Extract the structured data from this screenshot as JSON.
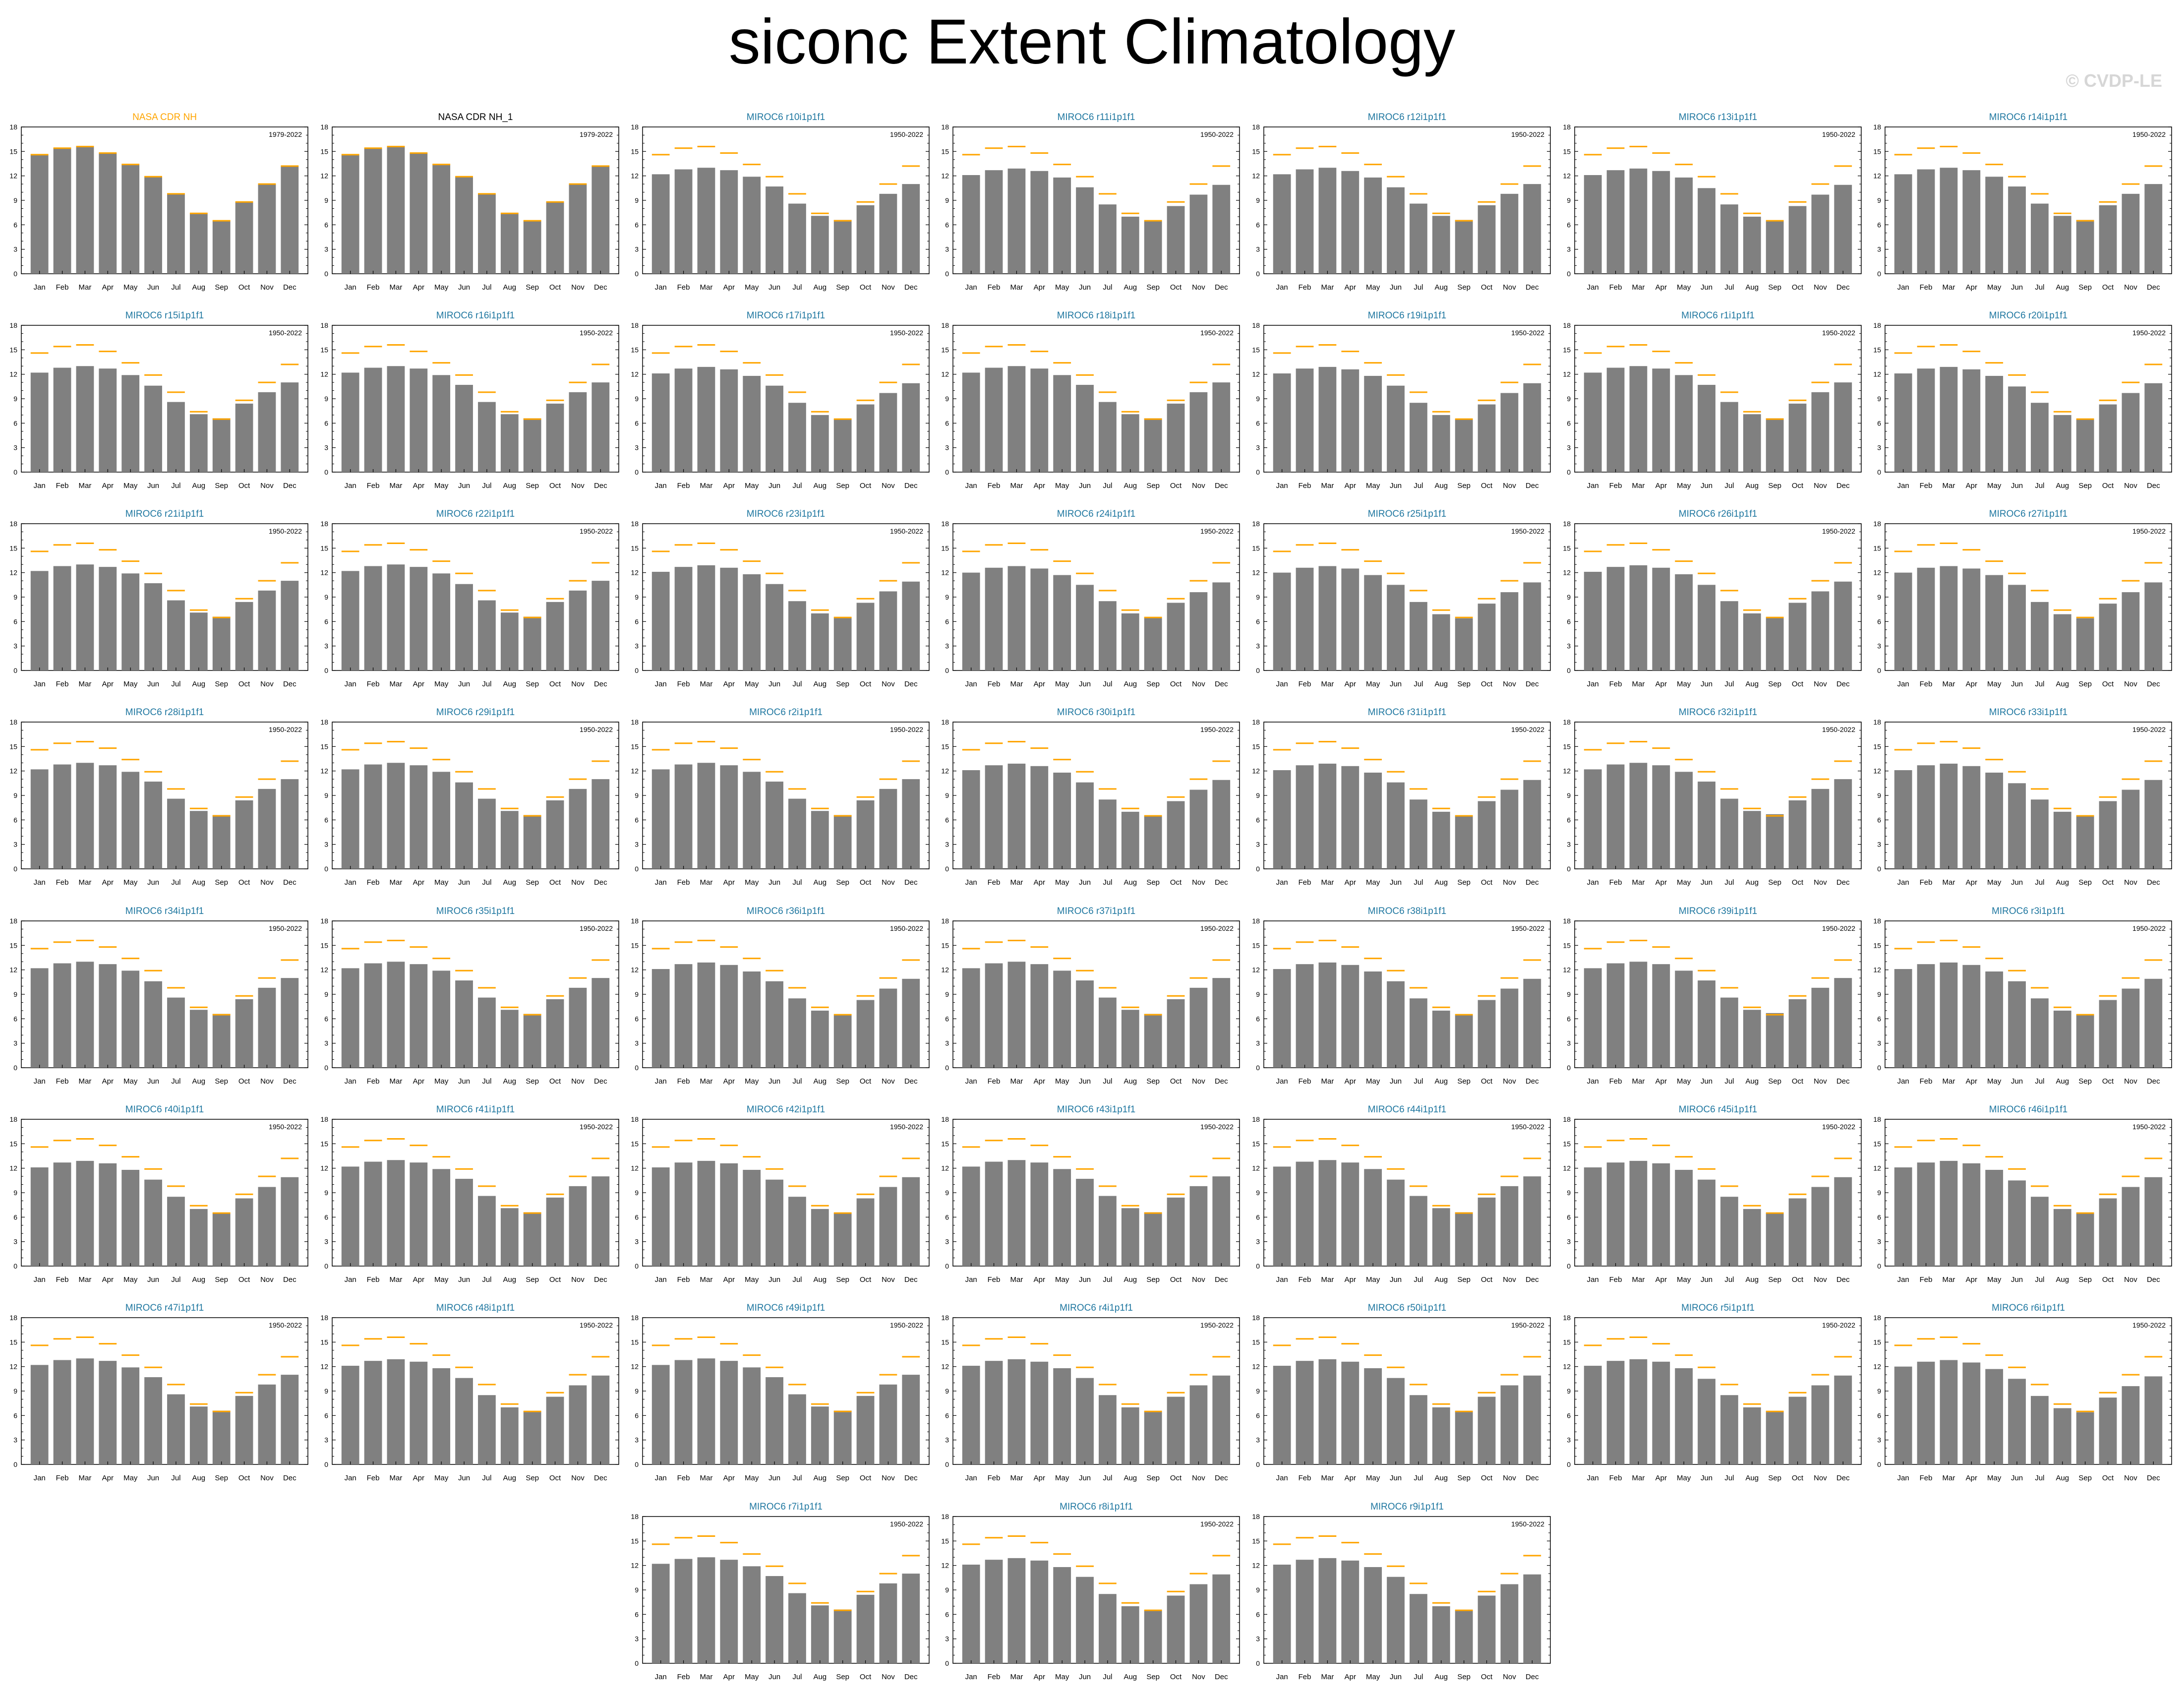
{
  "title": "siconc Extent Climatology",
  "copyright": "© CVDP-LE",
  "colors": {
    "bar": "#808080",
    "obs_line": "#FFA500",
    "obs_title": "#FFA500",
    "obs_copy_title": "#000000",
    "model_title": "#1f77a0",
    "axis": "#000000"
  },
  "chart_data": {
    "type": "bar",
    "categories": [
      "Jan",
      "Feb",
      "Mar",
      "Apr",
      "May",
      "Jun",
      "Jul",
      "Aug",
      "Sep",
      "Oct",
      "Nov",
      "Dec"
    ],
    "ylim": [
      0,
      18
    ],
    "yticks": [
      "0",
      "3",
      "6",
      "9",
      "12",
      "15",
      "18"
    ],
    "observed_reference": {
      "name": "NASA CDR NH",
      "values": [
        14.6,
        15.4,
        15.6,
        14.8,
        13.4,
        11.9,
        9.8,
        7.4,
        6.5,
        8.8,
        11.0,
        13.2
      ]
    },
    "panels": [
      {
        "title": "NASA CDR NH",
        "period": "1979-2022",
        "kind": "obs",
        "values": [
          14.6,
          15.4,
          15.6,
          14.8,
          13.4,
          11.9,
          9.8,
          7.4,
          6.5,
          8.8,
          11.0,
          13.2
        ]
      },
      {
        "title": "NASA CDR NH_1",
        "period": "1979-2022",
        "kind": "obscopy",
        "values": [
          14.6,
          15.4,
          15.6,
          14.8,
          13.4,
          11.9,
          9.8,
          7.4,
          6.5,
          8.8,
          11.0,
          13.2
        ]
      },
      {
        "title": "MIROC6 r10i1p1f1",
        "period": "1950-2022",
        "kind": "model",
        "values": [
          12.2,
          12.8,
          13.0,
          12.7,
          11.9,
          10.7,
          8.6,
          7.1,
          6.6,
          8.4,
          9.8,
          11.0
        ]
      },
      {
        "title": "MIROC6 r11i1p1f1",
        "period": "1950-2022",
        "kind": "model",
        "values": [
          12.1,
          12.7,
          12.9,
          12.6,
          11.8,
          10.6,
          8.5,
          7.0,
          6.5,
          8.3,
          9.7,
          10.9
        ]
      },
      {
        "title": "MIROC6 r12i1p1f1",
        "period": "1950-2022",
        "kind": "model",
        "values": [
          12.2,
          12.8,
          13.0,
          12.6,
          11.8,
          10.6,
          8.6,
          7.1,
          6.6,
          8.4,
          9.8,
          11.0
        ]
      },
      {
        "title": "MIROC6 r13i1p1f1",
        "period": "1950-2022",
        "kind": "model",
        "values": [
          12.1,
          12.7,
          12.9,
          12.6,
          11.8,
          10.5,
          8.5,
          7.0,
          6.5,
          8.3,
          9.7,
          10.9
        ]
      },
      {
        "title": "MIROC6 r14i1p1f1",
        "period": "1950-2022",
        "kind": "model",
        "values": [
          12.2,
          12.8,
          13.0,
          12.7,
          11.9,
          10.7,
          8.6,
          7.1,
          6.6,
          8.4,
          9.8,
          11.0
        ]
      },
      {
        "title": "MIROC6 r15i1p1f1",
        "period": "1950-2022",
        "kind": "model",
        "values": [
          12.2,
          12.8,
          13.0,
          12.7,
          11.9,
          10.6,
          8.6,
          7.1,
          6.6,
          8.4,
          9.8,
          11.0
        ]
      },
      {
        "title": "MIROC6 r16i1p1f1",
        "period": "1950-2022",
        "kind": "model",
        "values": [
          12.2,
          12.8,
          13.0,
          12.7,
          11.9,
          10.7,
          8.6,
          7.1,
          6.6,
          8.4,
          9.8,
          11.0
        ]
      },
      {
        "title": "MIROC6 r17i1p1f1",
        "period": "1950-2022",
        "kind": "model",
        "values": [
          12.1,
          12.7,
          12.9,
          12.6,
          11.8,
          10.6,
          8.5,
          7.0,
          6.5,
          8.3,
          9.7,
          10.9
        ]
      },
      {
        "title": "MIROC6 r18i1p1f1",
        "period": "1950-2022",
        "kind": "model",
        "values": [
          12.2,
          12.8,
          13.0,
          12.7,
          11.9,
          10.7,
          8.6,
          7.1,
          6.6,
          8.4,
          9.8,
          11.0
        ]
      },
      {
        "title": "MIROC6 r19i1p1f1",
        "period": "1950-2022",
        "kind": "model",
        "values": [
          12.1,
          12.7,
          12.9,
          12.6,
          11.8,
          10.6,
          8.5,
          7.0,
          6.5,
          8.3,
          9.7,
          10.9
        ]
      },
      {
        "title": "MIROC6 r1i1p1f1",
        "period": "1950-2022",
        "kind": "model",
        "values": [
          12.2,
          12.8,
          13.0,
          12.7,
          11.9,
          10.7,
          8.6,
          7.1,
          6.6,
          8.4,
          9.8,
          11.0
        ]
      },
      {
        "title": "MIROC6 r20i1p1f1",
        "period": "1950-2022",
        "kind": "model",
        "values": [
          12.1,
          12.7,
          12.9,
          12.6,
          11.8,
          10.5,
          8.5,
          7.0,
          6.5,
          8.3,
          9.7,
          10.9
        ]
      },
      {
        "title": "MIROC6 r21i1p1f1",
        "period": "1950-2022",
        "kind": "model",
        "values": [
          12.2,
          12.8,
          13.0,
          12.7,
          11.9,
          10.7,
          8.6,
          7.1,
          6.6,
          8.4,
          9.8,
          11.0
        ]
      },
      {
        "title": "MIROC6 r22i1p1f1",
        "period": "1950-2022",
        "kind": "model",
        "values": [
          12.2,
          12.8,
          13.0,
          12.7,
          11.9,
          10.6,
          8.6,
          7.1,
          6.6,
          8.4,
          9.8,
          11.0
        ]
      },
      {
        "title": "MIROC6 r23i1p1f1",
        "period": "1950-2022",
        "kind": "model",
        "values": [
          12.1,
          12.7,
          12.9,
          12.6,
          11.8,
          10.6,
          8.5,
          7.0,
          6.5,
          8.3,
          9.7,
          10.9
        ]
      },
      {
        "title": "MIROC6 r24i1p1f1",
        "period": "1950-2022",
        "kind": "model",
        "values": [
          12.0,
          12.6,
          12.8,
          12.5,
          11.7,
          10.5,
          8.5,
          7.0,
          6.5,
          8.3,
          9.6,
          10.8
        ]
      },
      {
        "title": "MIROC6 r25i1p1f1",
        "period": "1950-2022",
        "kind": "model",
        "values": [
          12.0,
          12.6,
          12.8,
          12.5,
          11.7,
          10.5,
          8.4,
          6.9,
          6.4,
          8.2,
          9.6,
          10.8
        ]
      },
      {
        "title": "MIROC6 r26i1p1f1",
        "period": "1950-2022",
        "kind": "model",
        "values": [
          12.1,
          12.7,
          12.9,
          12.6,
          11.8,
          10.5,
          8.5,
          7.0,
          6.5,
          8.3,
          9.7,
          10.9
        ]
      },
      {
        "title": "MIROC6 r27i1p1f1",
        "period": "1950-2022",
        "kind": "model",
        "values": [
          12.0,
          12.6,
          12.8,
          12.5,
          11.7,
          10.5,
          8.4,
          6.9,
          6.4,
          8.2,
          9.6,
          10.8
        ]
      },
      {
        "title": "MIROC6 r28i1p1f1",
        "period": "1950-2022",
        "kind": "model",
        "values": [
          12.2,
          12.8,
          13.0,
          12.7,
          11.9,
          10.7,
          8.6,
          7.1,
          6.6,
          8.4,
          9.8,
          11.0
        ]
      },
      {
        "title": "MIROC6 r29i1p1f1",
        "period": "1950-2022",
        "kind": "model",
        "values": [
          12.2,
          12.8,
          13.0,
          12.7,
          11.9,
          10.6,
          8.6,
          7.1,
          6.6,
          8.4,
          9.8,
          11.0
        ]
      },
      {
        "title": "MIROC6 r2i1p1f1",
        "period": "1950-2022",
        "kind": "model",
        "values": [
          12.2,
          12.8,
          13.0,
          12.7,
          11.9,
          10.7,
          8.6,
          7.1,
          6.6,
          8.4,
          9.8,
          11.0
        ]
      },
      {
        "title": "MIROC6 r30i1p1f1",
        "period": "1950-2022",
        "kind": "model",
        "values": [
          12.1,
          12.7,
          12.9,
          12.6,
          11.8,
          10.6,
          8.5,
          7.0,
          6.5,
          8.3,
          9.7,
          10.9
        ]
      },
      {
        "title": "MIROC6 r31i1p1f1",
        "period": "1950-2022",
        "kind": "model",
        "values": [
          12.1,
          12.7,
          12.9,
          12.6,
          11.8,
          10.6,
          8.5,
          7.0,
          6.5,
          8.3,
          9.7,
          10.9
        ]
      },
      {
        "title": "MIROC6 r32i1p1f1",
        "period": "1950-2022",
        "kind": "model",
        "values": [
          12.2,
          12.8,
          13.0,
          12.7,
          11.9,
          10.7,
          8.6,
          7.1,
          6.7,
          8.4,
          9.8,
          11.0
        ]
      },
      {
        "title": "MIROC6 r33i1p1f1",
        "period": "1950-2022",
        "kind": "model",
        "values": [
          12.1,
          12.7,
          12.9,
          12.6,
          11.8,
          10.5,
          8.5,
          7.0,
          6.5,
          8.3,
          9.7,
          10.9
        ]
      },
      {
        "title": "MIROC6 r34i1p1f1",
        "period": "1950-2022",
        "kind": "model",
        "values": [
          12.2,
          12.8,
          13.0,
          12.7,
          11.9,
          10.6,
          8.6,
          7.1,
          6.6,
          8.4,
          9.8,
          11.0
        ]
      },
      {
        "title": "MIROC6 r35i1p1f1",
        "period": "1950-2022",
        "kind": "model",
        "values": [
          12.2,
          12.8,
          13.0,
          12.7,
          11.9,
          10.7,
          8.6,
          7.1,
          6.6,
          8.4,
          9.8,
          11.0
        ]
      },
      {
        "title": "MIROC6 r36i1p1f1",
        "period": "1950-2022",
        "kind": "model",
        "values": [
          12.1,
          12.7,
          12.9,
          12.6,
          11.8,
          10.6,
          8.5,
          7.0,
          6.5,
          8.3,
          9.7,
          10.9
        ]
      },
      {
        "title": "MIROC6 r37i1p1f1",
        "period": "1950-2022",
        "kind": "model",
        "values": [
          12.2,
          12.8,
          13.0,
          12.7,
          11.9,
          10.7,
          8.6,
          7.1,
          6.6,
          8.4,
          9.8,
          11.0
        ]
      },
      {
        "title": "MIROC6 r38i1p1f1",
        "period": "1950-2022",
        "kind": "model",
        "values": [
          12.1,
          12.7,
          12.9,
          12.6,
          11.8,
          10.6,
          8.5,
          7.0,
          6.5,
          8.3,
          9.7,
          10.9
        ]
      },
      {
        "title": "MIROC6 r39i1p1f1",
        "period": "1950-2022",
        "kind": "model",
        "values": [
          12.2,
          12.8,
          13.0,
          12.7,
          11.9,
          10.7,
          8.6,
          7.1,
          6.7,
          8.4,
          9.8,
          11.0
        ]
      },
      {
        "title": "MIROC6 r3i1p1f1",
        "period": "1950-2022",
        "kind": "model",
        "values": [
          12.1,
          12.7,
          12.9,
          12.6,
          11.8,
          10.6,
          8.5,
          7.0,
          6.5,
          8.3,
          9.7,
          10.9
        ]
      },
      {
        "title": "MIROC6 r40i1p1f1",
        "period": "1950-2022",
        "kind": "model",
        "values": [
          12.1,
          12.7,
          12.9,
          12.6,
          11.8,
          10.6,
          8.5,
          7.0,
          6.5,
          8.3,
          9.7,
          10.9
        ]
      },
      {
        "title": "MIROC6 r41i1p1f1",
        "period": "1950-2022",
        "kind": "model",
        "values": [
          12.2,
          12.8,
          13.0,
          12.7,
          11.9,
          10.7,
          8.6,
          7.1,
          6.6,
          8.4,
          9.8,
          11.0
        ]
      },
      {
        "title": "MIROC6 r42i1p1f1",
        "period": "1950-2022",
        "kind": "model",
        "values": [
          12.1,
          12.7,
          12.9,
          12.6,
          11.8,
          10.6,
          8.5,
          7.0,
          6.5,
          8.3,
          9.7,
          10.9
        ]
      },
      {
        "title": "MIROC6 r43i1p1f1",
        "period": "1950-2022",
        "kind": "model",
        "values": [
          12.2,
          12.8,
          13.0,
          12.7,
          11.9,
          10.7,
          8.6,
          7.1,
          6.6,
          8.4,
          9.8,
          11.0
        ]
      },
      {
        "title": "MIROC6 r44i1p1f1",
        "period": "1950-2022",
        "kind": "model",
        "values": [
          12.2,
          12.8,
          13.0,
          12.7,
          11.9,
          10.6,
          8.6,
          7.1,
          6.6,
          8.4,
          9.8,
          11.0
        ]
      },
      {
        "title": "MIROC6 r45i1p1f1",
        "period": "1950-2022",
        "kind": "model",
        "values": [
          12.1,
          12.7,
          12.9,
          12.6,
          11.8,
          10.6,
          8.5,
          7.0,
          6.5,
          8.3,
          9.7,
          10.9
        ]
      },
      {
        "title": "MIROC6 r46i1p1f1",
        "period": "1950-2022",
        "kind": "model",
        "values": [
          12.1,
          12.7,
          12.9,
          12.6,
          11.8,
          10.5,
          8.5,
          7.0,
          6.5,
          8.3,
          9.7,
          10.9
        ]
      },
      {
        "title": "MIROC6 r47i1p1f1",
        "period": "1950-2022",
        "kind": "model",
        "values": [
          12.2,
          12.8,
          13.0,
          12.7,
          11.9,
          10.7,
          8.6,
          7.1,
          6.6,
          8.4,
          9.8,
          11.0
        ]
      },
      {
        "title": "MIROC6 r48i1p1f1",
        "period": "1950-2022",
        "kind": "model",
        "values": [
          12.1,
          12.7,
          12.9,
          12.6,
          11.8,
          10.6,
          8.5,
          7.0,
          6.5,
          8.3,
          9.7,
          10.9
        ]
      },
      {
        "title": "MIROC6 r49i1p1f1",
        "period": "1950-2022",
        "kind": "model",
        "values": [
          12.2,
          12.8,
          13.0,
          12.7,
          11.9,
          10.7,
          8.6,
          7.1,
          6.6,
          8.4,
          9.8,
          11.0
        ]
      },
      {
        "title": "MIROC6 r4i1p1f1",
        "period": "1950-2022",
        "kind": "model",
        "values": [
          12.1,
          12.7,
          12.9,
          12.6,
          11.8,
          10.6,
          8.5,
          7.0,
          6.5,
          8.3,
          9.7,
          10.9
        ]
      },
      {
        "title": "MIROC6 r50i1p1f1",
        "period": "1950-2022",
        "kind": "model",
        "values": [
          12.1,
          12.7,
          12.9,
          12.6,
          11.8,
          10.6,
          8.5,
          7.0,
          6.5,
          8.3,
          9.7,
          10.9
        ]
      },
      {
        "title": "MIROC6 r5i1p1f1",
        "period": "1950-2022",
        "kind": "model",
        "values": [
          12.1,
          12.7,
          12.9,
          12.6,
          11.8,
          10.5,
          8.5,
          7.0,
          6.5,
          8.3,
          9.7,
          10.9
        ]
      },
      {
        "title": "MIROC6 r6i1p1f1",
        "period": "1950-2022",
        "kind": "model",
        "values": [
          12.0,
          12.6,
          12.8,
          12.5,
          11.7,
          10.5,
          8.4,
          6.9,
          6.4,
          8.2,
          9.6,
          10.8
        ]
      },
      {
        "title": "MIROC6 r7i1p1f1",
        "period": "1950-2022",
        "kind": "model",
        "values": [
          12.2,
          12.8,
          13.0,
          12.7,
          11.9,
          10.7,
          8.6,
          7.1,
          6.6,
          8.4,
          9.8,
          11.0
        ]
      },
      {
        "title": "MIROC6 r8i1p1f1",
        "period": "1950-2022",
        "kind": "model",
        "values": [
          12.1,
          12.7,
          12.9,
          12.6,
          11.8,
          10.6,
          8.5,
          7.0,
          6.5,
          8.3,
          9.7,
          10.9
        ]
      },
      {
        "title": "MIROC6 r9i1p1f1",
        "period": "1950-2022",
        "kind": "model",
        "values": [
          12.1,
          12.7,
          12.9,
          12.6,
          11.8,
          10.6,
          8.5,
          7.0,
          6.5,
          8.3,
          9.7,
          10.9
        ]
      }
    ]
  }
}
